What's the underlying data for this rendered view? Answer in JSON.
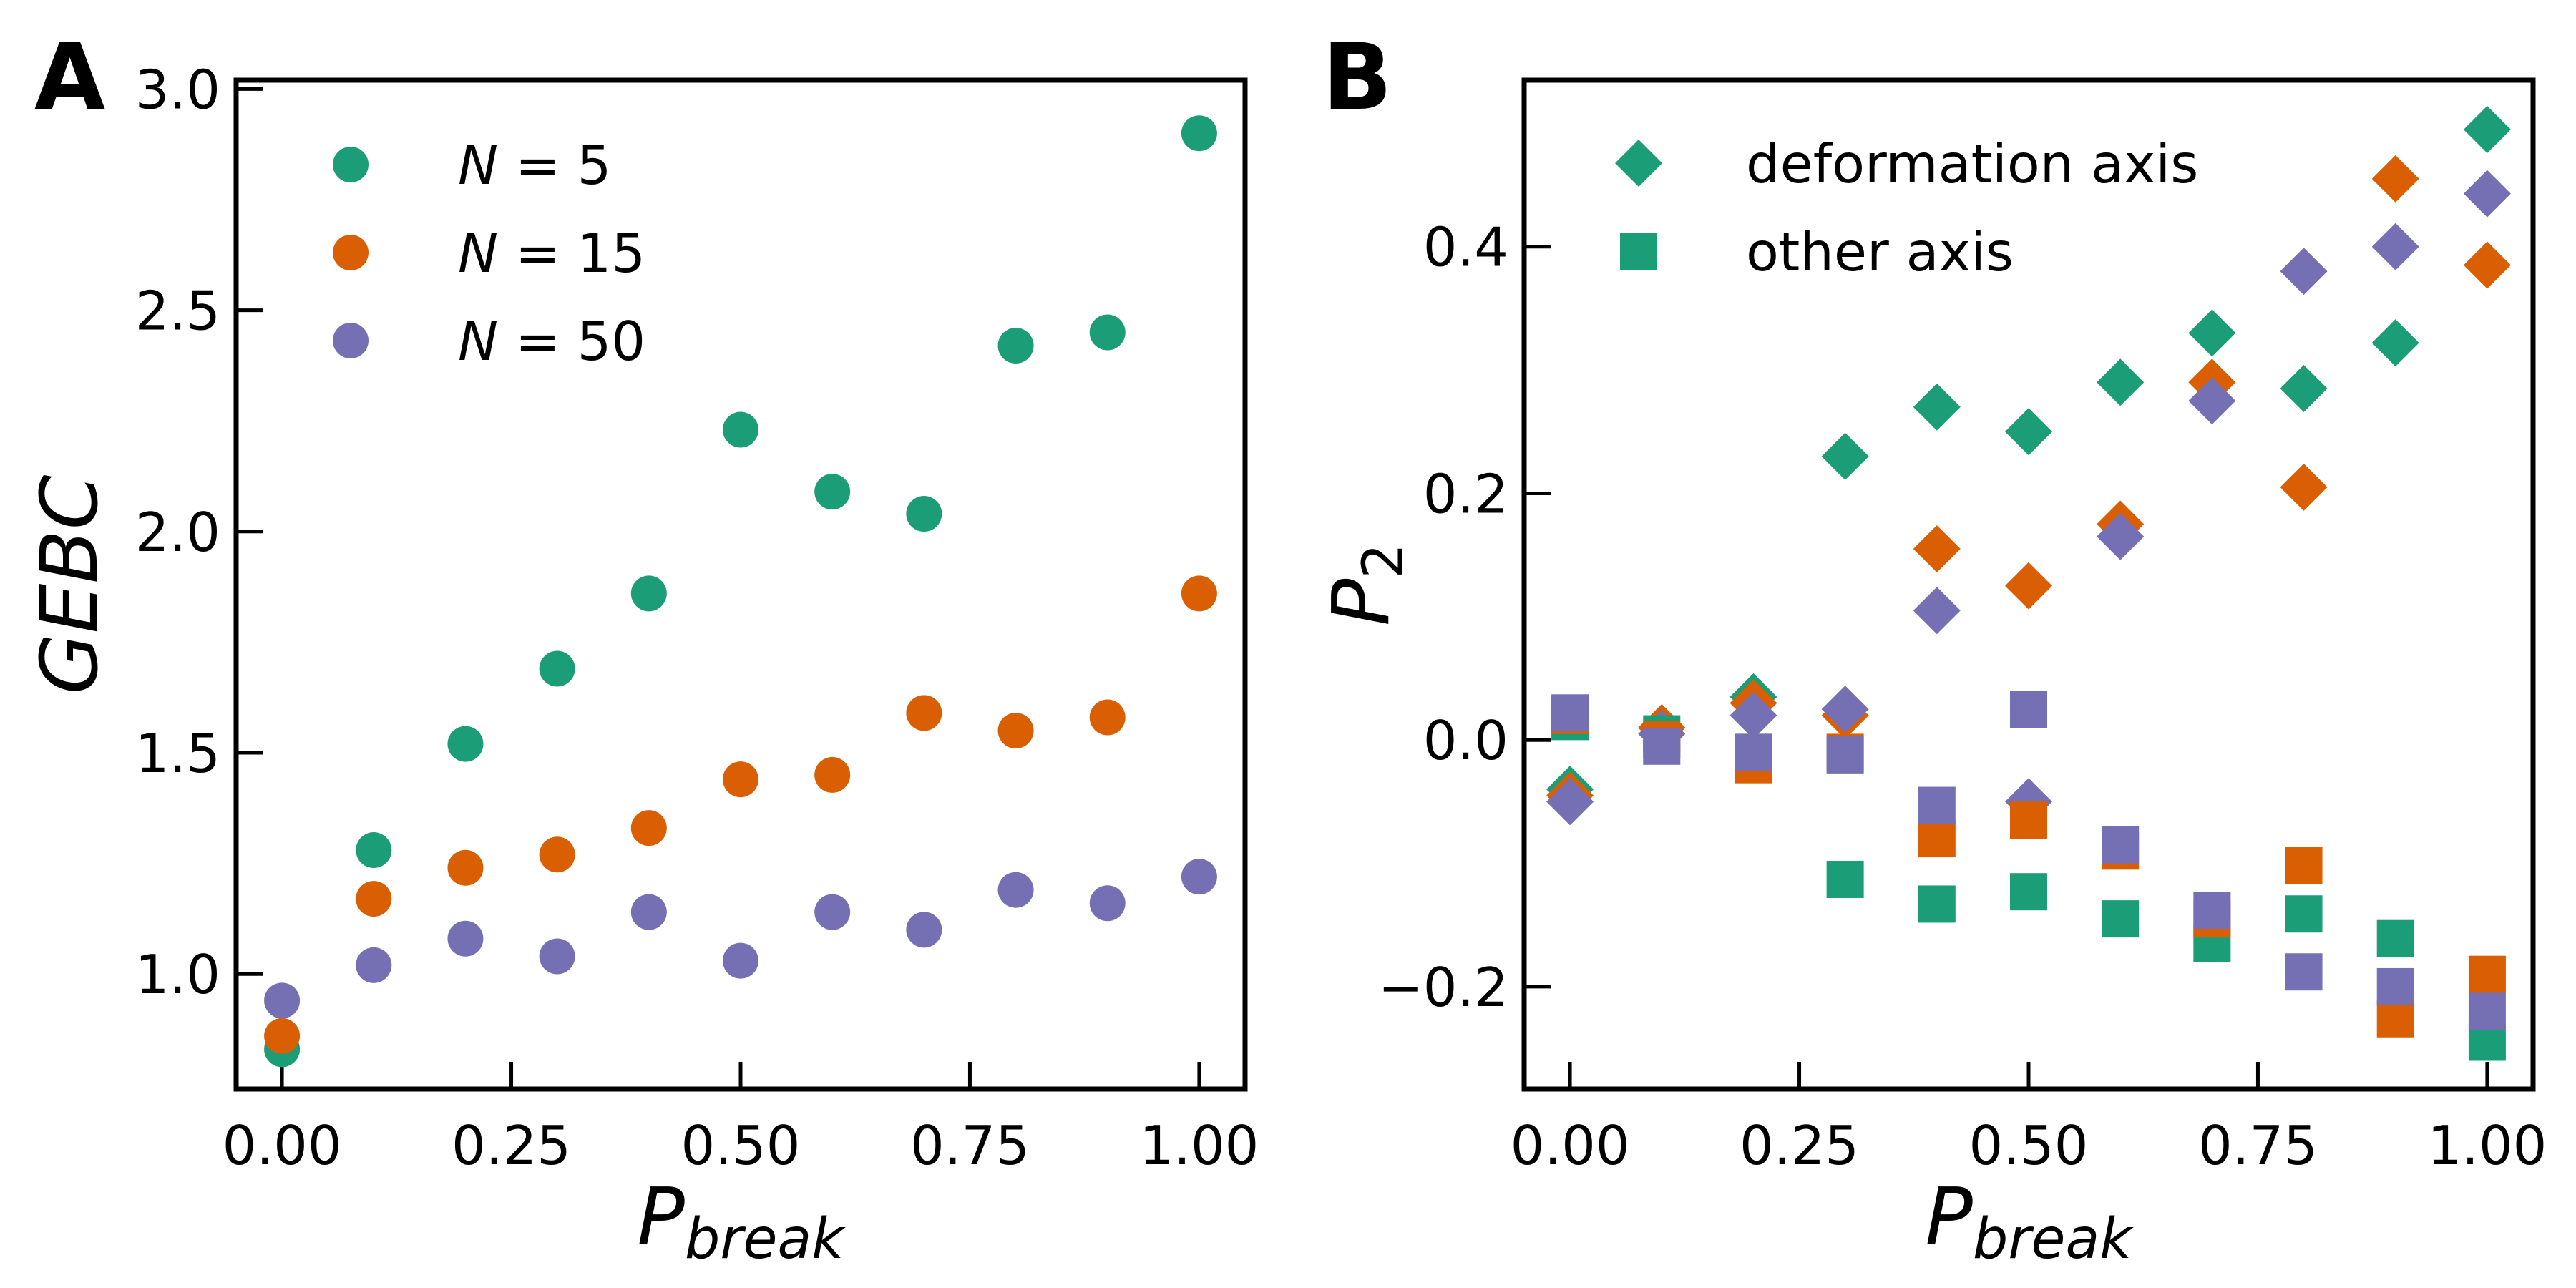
{
  "colors": {
    "green": "#1b9e77",
    "orange": "#d95f02",
    "purple": "#7570b3"
  },
  "chart_data": [
    {
      "panel": "A",
      "type": "scatter",
      "xlabel": "P",
      "xlabel_sub": "break",
      "ylabel": "GEBC",
      "xlim": [
        -0.05,
        1.05
      ],
      "ylim": [
        0.74,
        3.02
      ],
      "xticks": [
        0.0,
        0.25,
        0.5,
        0.75,
        1.0
      ],
      "xtick_labels": [
        "0.00",
        "0.25",
        "0.50",
        "0.75",
        "1.00"
      ],
      "yticks": [
        1.0,
        1.5,
        2.0,
        2.5,
        3.0
      ],
      "ytick_labels": [
        "1.0",
        "1.5",
        "2.0",
        "2.5",
        "3.0"
      ],
      "legend_position": "upper-left",
      "x": [
        0.0,
        0.1,
        0.2,
        0.3,
        0.4,
        0.5,
        0.6,
        0.7,
        0.8,
        0.9,
        1.0
      ],
      "series": [
        {
          "name": "N = 5",
          "label_italic": "N",
          "label_rest": " = 5",
          "color": "green",
          "marker": "circle",
          "values": [
            0.83,
            1.28,
            1.52,
            1.69,
            1.86,
            2.23,
            2.09,
            2.04,
            2.42,
            2.45,
            2.9
          ]
        },
        {
          "name": "N = 15",
          "label_italic": "N",
          "label_rest": " = 15",
          "color": "orange",
          "marker": "circle",
          "values": [
            0.86,
            1.17,
            1.24,
            1.27,
            1.33,
            1.44,
            1.45,
            1.59,
            1.55,
            1.58,
            1.86
          ]
        },
        {
          "name": "N = 50",
          "label_italic": "N",
          "label_rest": " = 50",
          "color": "purple",
          "marker": "circle",
          "values": [
            0.94,
            1.02,
            1.08,
            1.04,
            1.14,
            1.03,
            1.14,
            1.1,
            1.19,
            1.16,
            1.22
          ]
        }
      ]
    },
    {
      "panel": "B",
      "type": "scatter",
      "xlabel": "P",
      "xlabel_sub": "break",
      "ylabel": "P",
      "ylabel_sub": "2",
      "xlim": [
        -0.05,
        1.05
      ],
      "ylim": [
        -0.283,
        0.535
      ],
      "xticks": [
        0.0,
        0.25,
        0.5,
        0.75,
        1.0
      ],
      "xtick_labels": [
        "0.00",
        "0.25",
        "0.50",
        "0.75",
        "1.00"
      ],
      "yticks": [
        -0.2,
        0.0,
        0.2,
        0.4
      ],
      "ytick_labels": [
        "−0.2",
        "0.0",
        "0.2",
        "0.4"
      ],
      "legend_position": "upper-left",
      "legend": [
        {
          "label": "deformation axis",
          "marker": "diamond",
          "color": "green"
        },
        {
          "label": "other axis",
          "marker": "square",
          "color": "green"
        }
      ],
      "x": [
        0.0,
        0.1,
        0.2,
        0.3,
        0.4,
        0.5,
        0.6,
        0.7,
        0.8,
        0.9,
        1.0
      ],
      "series": [
        {
          "group": "deformation axis",
          "n": 5,
          "color": "green",
          "marker": "diamond",
          "values": [
            -0.04,
            0.01,
            0.035,
            0.23,
            0.27,
            0.25,
            0.29,
            0.33,
            0.285,
            0.322,
            0.495
          ]
        },
        {
          "group": "deformation axis",
          "n": 15,
          "color": "orange",
          "marker": "diamond",
          "values": [
            -0.045,
            0.01,
            0.03,
            0.02,
            0.155,
            0.125,
            0.175,
            0.29,
            0.205,
            0.455,
            0.385
          ]
        },
        {
          "group": "deformation axis",
          "n": 50,
          "color": "purple",
          "marker": "diamond",
          "values": [
            -0.05,
            0.005,
            0.02,
            0.025,
            0.105,
            -0.05,
            0.165,
            0.275,
            0.38,
            0.4,
            0.443
          ]
        },
        {
          "group": "other axis",
          "n": 5,
          "color": "green",
          "marker": "square",
          "values": [
            0.015,
            0.005,
            -0.01,
            -0.113,
            -0.133,
            -0.123,
            -0.145,
            -0.165,
            -0.141,
            -0.161,
            -0.245
          ]
        },
        {
          "group": "other axis",
          "n": 15,
          "color": "orange",
          "marker": "square",
          "values": [
            0.02,
            0.0,
            -0.02,
            -0.01,
            -0.08,
            -0.065,
            -0.09,
            -0.145,
            -0.102,
            -0.226,
            -0.19
          ]
        },
        {
          "group": "other axis",
          "n": 50,
          "color": "purple",
          "marker": "square",
          "values": [
            0.022,
            -0.005,
            -0.01,
            -0.012,
            -0.053,
            0.025,
            -0.085,
            -0.138,
            -0.188,
            -0.2,
            -0.22
          ]
        }
      ]
    }
  ]
}
